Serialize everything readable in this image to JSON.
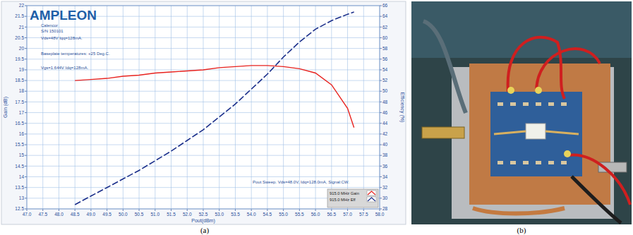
{
  "chart_data": {
    "type": "line",
    "title": "AMPLEON",
    "annotations": [
      "Calencor",
      "S/N 150101",
      "Vds=48V Iqq=128mA.",
      "Baseplate temperatures: +25 Deg.C.",
      "Vgs=1.644V Idq=128mA.",
      "Pout Sweep. Vds=48.0V, Idq=128.0mA, Signal:CW."
    ],
    "x_label": "Pout(dBm)",
    "y_label": "Gain (dB)",
    "y2_label": "Efficiency (%)",
    "x": [
      48.5,
      49,
      49.5,
      50,
      50.5,
      51,
      51.5,
      52,
      52.5,
      53,
      53.5,
      54,
      54.5,
      55,
      55.5,
      56,
      56.5,
      57,
      57.2
    ],
    "series": [
      {
        "name": "915.0 MHz Gain",
        "color": "#e8221e",
        "line_style": "solid",
        "values": [
          18.5,
          18.55,
          18.6,
          18.7,
          18.75,
          18.85,
          18.9,
          18.95,
          19.0,
          19.1,
          19.15,
          19.2,
          19.2,
          19.15,
          19.05,
          18.85,
          18.3,
          17.2,
          16.3
        ]
      },
      {
        "name": "915.0 MHz Eff",
        "color": "#1a2e8a",
        "line_style": "dashed",
        "axis": "y2",
        "values": [
          28.8,
          30.4,
          32,
          33.6,
          35.2,
          37,
          38.8,
          40.8,
          42.8,
          45.2,
          47.6,
          50.4,
          53.2,
          56.4,
          59.2,
          61.6,
          63.2,
          64.4,
          64.8
        ]
      }
    ],
    "xlim": [
      47,
      58
    ],
    "xticks": [
      {
        "value": 47,
        "label": "47.0"
      },
      {
        "value": 47.5,
        "label": "47.5"
      },
      {
        "value": 48,
        "label": "48.0"
      },
      {
        "value": 48.5,
        "label": "48.5"
      },
      {
        "value": 49,
        "label": "49.0"
      },
      {
        "value": 49.5,
        "label": "49.5"
      },
      {
        "value": 50,
        "label": "50.0"
      },
      {
        "value": 50.5,
        "label": "50.5"
      },
      {
        "value": 51,
        "label": "51.0"
      },
      {
        "value": 51.5,
        "label": "51.5"
      },
      {
        "value": 52,
        "label": "52.0"
      },
      {
        "value": 52.5,
        "label": "52.5"
      },
      {
        "value": 53,
        "label": "53.0"
      },
      {
        "value": 53.5,
        "label": "53.5"
      },
      {
        "value": 54,
        "label": "54.0"
      },
      {
        "value": 54.5,
        "label": "54.5"
      },
      {
        "value": 55,
        "label": "55.0"
      },
      {
        "value": 55.5,
        "label": "55.5"
      },
      {
        "value": 56,
        "label": "56.0"
      },
      {
        "value": 56.5,
        "label": "56.5"
      },
      {
        "value": 57,
        "label": "57.0"
      },
      {
        "value": 57.5,
        "label": "57.5"
      },
      {
        "value": 58,
        "label": "58.0"
      }
    ],
    "ylim": [
      12.5,
      22
    ],
    "yticks": [
      12.5,
      13,
      13.5,
      14,
      14.5,
      15,
      15.5,
      16,
      16.5,
      17,
      17.5,
      18,
      18.5,
      19,
      19.5,
      20,
      20.5,
      21,
      21.5,
      22
    ],
    "y2lim": [
      28,
      66
    ],
    "y2ticks": [
      28,
      30,
      32,
      34,
      36,
      38,
      40,
      42,
      44,
      46,
      48,
      50,
      52,
      54,
      56,
      58,
      60,
      62,
      64,
      66
    ],
    "grid": true,
    "legend": "lower right"
  },
  "figure": {
    "captions": [
      "(a)",
      "(b)"
    ]
  }
}
